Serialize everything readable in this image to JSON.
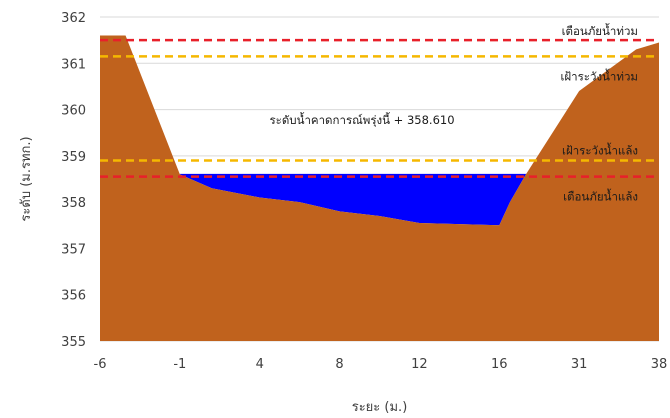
{
  "chart_data": {
    "type": "area",
    "title": "",
    "xlabel": "ระยะ (ม.)",
    "ylabel": "ระดับ (ม.รทก.)",
    "ylim": [
      355,
      362
    ],
    "yticks": [
      "355",
      "356",
      "357",
      "358",
      "359",
      "360",
      "361",
      "362"
    ],
    "xticks": [
      "-6",
      "-1",
      "4",
      "8",
      "12",
      "16",
      "31",
      "38"
    ],
    "grid": true,
    "colors": {
      "ground": "#C0621D",
      "water": "#0000FF",
      "red_line": "#E8202A",
      "yellow_line": "#F5B800",
      "grid": "#D9D9D9"
    },
    "ground_profile": [
      {
        "x": -6.0,
        "y": 361.6
      },
      {
        "x": -4.4,
        "y": 361.6
      },
      {
        "x": -1.0,
        "y": 358.6
      },
      {
        "x": 1.0,
        "y": 358.3
      },
      {
        "x": 4.0,
        "y": 358.1
      },
      {
        "x": 6.0,
        "y": 358.0
      },
      {
        "x": 8.0,
        "y": 357.8
      },
      {
        "x": 10.0,
        "y": 357.7
      },
      {
        "x": 12.0,
        "y": 357.55
      },
      {
        "x": 16.0,
        "y": 357.5
      },
      {
        "x": 18.0,
        "y": 358.0
      },
      {
        "x": 21.0,
        "y": 358.6
      },
      {
        "x": 31.0,
        "y": 360.4
      },
      {
        "x": 36.0,
        "y": 361.3
      },
      {
        "x": 38.0,
        "y": 361.45
      }
    ],
    "water_level": 358.61,
    "reference_lines": [
      {
        "label": "เตือนภัยน้ำท่วม",
        "y": 361.5,
        "color": "red"
      },
      {
        "label": "เฝ้าระวังน้ำท่วม",
        "y": 361.15,
        "color": "yellow"
      },
      {
        "label": "เฝ้าระวังน้ำแล้ง",
        "y": 358.9,
        "color": "yellow"
      },
      {
        "label": "เตือนภัยน้ำแล้ง",
        "y": 358.55,
        "color": "red"
      }
    ],
    "water_annotation": "ระดับน้ำคาดการณ์พรุ่งนี้ + 358.610"
  }
}
